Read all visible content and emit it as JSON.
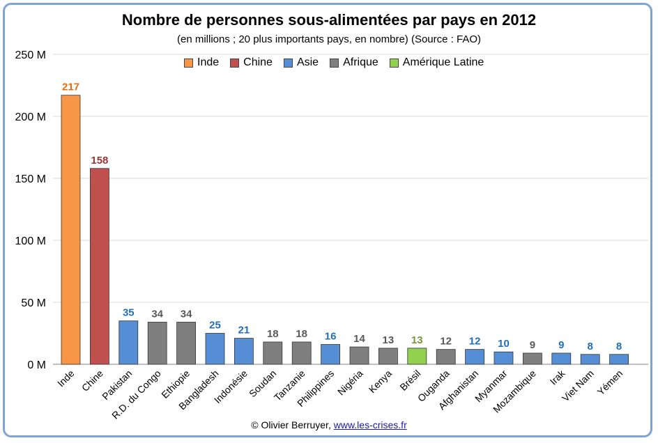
{
  "chart_data": {
    "type": "bar",
    "title": "Nombre de personnes sous-alimentées par pays en 2012",
    "subtitle": "(en millions ; 20 plus importants pays, en nombre) (Source : FAO)",
    "ylim": [
      0,
      250
    ],
    "yticks": [
      "0 M",
      "50 M",
      "100 M",
      "150 M",
      "200 M",
      "250 M"
    ],
    "ytick_values": [
      0,
      50,
      100,
      150,
      200,
      250
    ],
    "grid": true,
    "legend_position": "top",
    "legend": [
      {
        "label": "Inde",
        "color": "#f79646"
      },
      {
        "label": "Chine",
        "color": "#c0504d"
      },
      {
        "label": "Asie",
        "color": "#558ed5"
      },
      {
        "label": "Afrique",
        "color": "#7f7f7f"
      },
      {
        "label": "Amérique Latine",
        "color": "#92d050"
      }
    ],
    "categories": [
      "Inde",
      "Chine",
      "Pakistan",
      "R.D. du Congo",
      "Ethiopie",
      "Bangladesh",
      "Indonésie",
      "Soudan",
      "Tanzanie",
      "Philippines",
      "Nigéria",
      "Kenya",
      "Brésil",
      "Ouganda",
      "Afghanistan",
      "Myanmar",
      "Mozambique",
      "Irak",
      "Viet Nam",
      "Yémen"
    ],
    "values": [
      217,
      158,
      35,
      34,
      34,
      25,
      21,
      18,
      18,
      16,
      14,
      13,
      13,
      12,
      12,
      10,
      9,
      9,
      8,
      8
    ],
    "groups": [
      "Inde",
      "Chine",
      "Asie",
      "Afrique",
      "Afrique",
      "Asie",
      "Asie",
      "Afrique",
      "Afrique",
      "Asie",
      "Afrique",
      "Afrique",
      "Amérique Latine",
      "Afrique",
      "Asie",
      "Asie",
      "Afrique",
      "Asie",
      "Asie",
      "Asie"
    ],
    "label_colors": {
      "Inde": "#e46c0a",
      "Chine": "#953735",
      "Asie": "#1f6fbf",
      "Afrique": "#595959",
      "Amérique Latine": "#77933c"
    }
  },
  "footer": {
    "credit": "© Olivier Berruyer, ",
    "link": "www.les-crises.fr"
  }
}
